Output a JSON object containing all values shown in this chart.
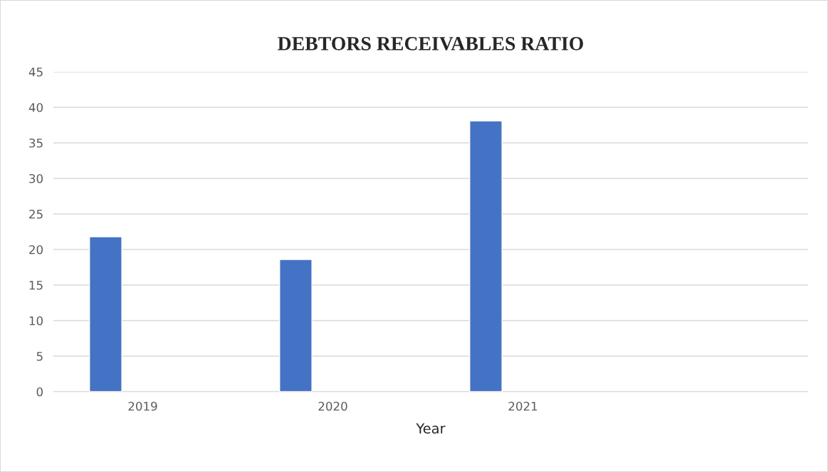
{
  "chart_data": {
    "type": "bar",
    "title": "DEBTORS RECEIVABLES RATIO",
    "xlabel": "Year",
    "categories": [
      "2019",
      "2020",
      "2021",
      null
    ],
    "values": [
      21.8,
      18.6,
      38.1,
      null
    ],
    "color": "#4472c4",
    "ylim": [
      0,
      45
    ],
    "yticks": [
      0,
      5,
      10,
      15,
      20,
      25,
      30,
      35,
      40,
      45
    ],
    "grid": "y"
  }
}
